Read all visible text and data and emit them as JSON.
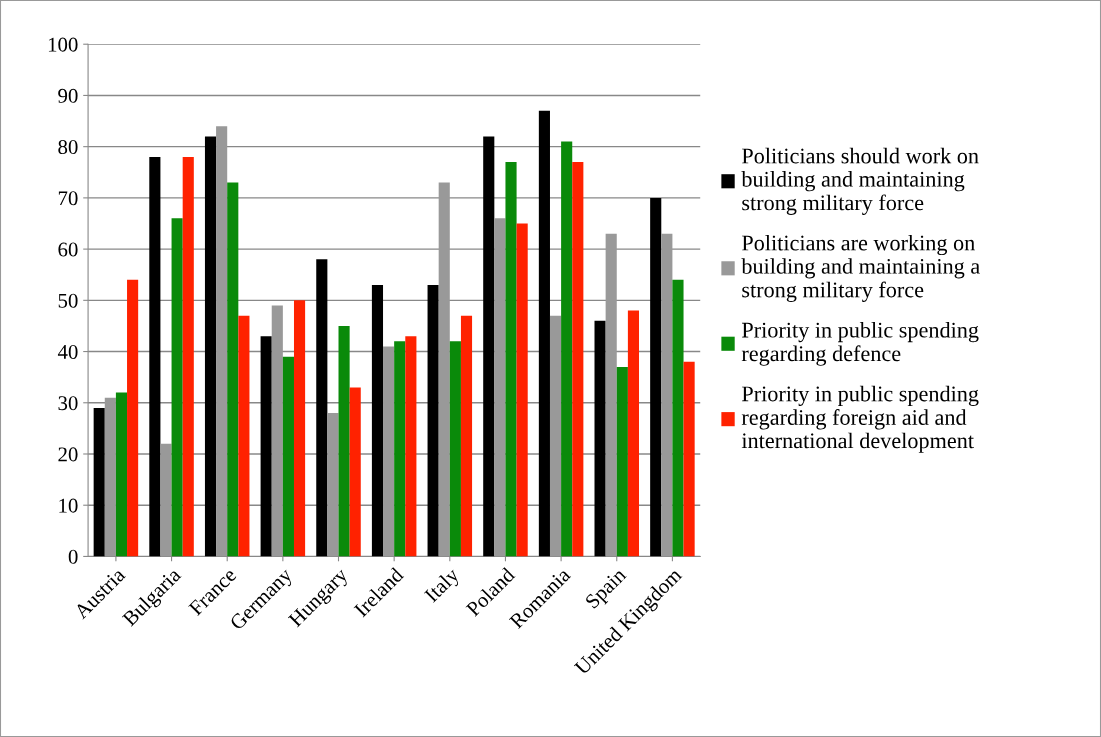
{
  "chart_data": {
    "type": "bar",
    "categories": [
      "Austria",
      "Bulgaria",
      "France",
      "Germany",
      "Hungary",
      "Ireland",
      "Italy",
      "Poland",
      "Romania",
      "Spain",
      "United Kingdom"
    ],
    "series": [
      {
        "name": "Politicians should work on\nbuilding and maintaining\nstrong military force",
        "color": "#000000",
        "values": [
          29,
          78,
          82,
          43,
          58,
          53,
          53,
          82,
          87,
          46,
          70
        ]
      },
      {
        "name": "Politicians are working on\nbuilding and maintaining a\nstrong military force",
        "color": "#999999",
        "values": [
          31,
          22,
          84,
          49,
          28,
          41,
          73,
          66,
          47,
          63,
          63
        ]
      },
      {
        "name": "Priority in public spending\nregarding defence",
        "color": "#0a8a0a",
        "values": [
          32,
          66,
          73,
          39,
          45,
          42,
          42,
          77,
          81,
          37,
          54
        ]
      },
      {
        "name": "Priority in public spending\nregarding foreign aid and\ninternational development",
        "color": "#ff2200",
        "values": [
          54,
          78,
          47,
          50,
          33,
          43,
          47,
          65,
          77,
          48,
          38
        ]
      }
    ],
    "ylim": [
      0,
      100
    ],
    "yticks": [
      0,
      10,
      20,
      30,
      40,
      50,
      60,
      70,
      80,
      90,
      100
    ],
    "grid": "y",
    "legend": "right"
  }
}
